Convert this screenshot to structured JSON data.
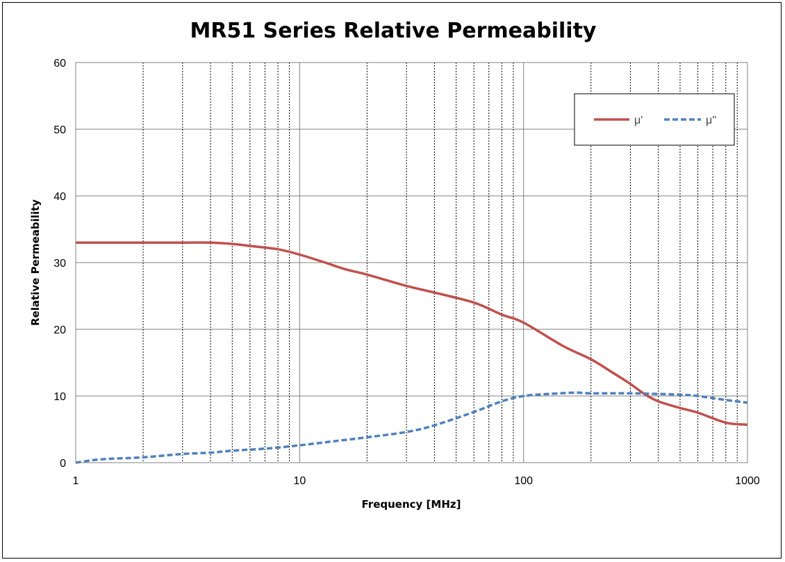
{
  "chart_data": {
    "type": "line",
    "title": "MR51 Series Relative Permeability",
    "xlabel": "Frequency [MHz]",
    "ylabel": "Relative Permeability",
    "x_scale": "log",
    "xlim": [
      1,
      1000
    ],
    "ylim": [
      0,
      60
    ],
    "x_ticks": [
      "1",
      "10",
      "100",
      "1000"
    ],
    "y_ticks": [
      "0",
      "10",
      "20",
      "30",
      "40",
      "50",
      "60"
    ],
    "grid": true,
    "legend_position": "top-right",
    "series": [
      {
        "name": "μ'",
        "color": "#C0504D",
        "line_style": "solid",
        "x": [
          1,
          2,
          3,
          4,
          5,
          6,
          8,
          10,
          13,
          16,
          20,
          30,
          40,
          60,
          80,
          100,
          150,
          200,
          250,
          300,
          350,
          400,
          500,
          600,
          800,
          1000
        ],
        "y": [
          33,
          33,
          33,
          33,
          32.8,
          32.5,
          32,
          31.2,
          30,
          29,
          28.2,
          26.5,
          25.5,
          24,
          22.2,
          21,
          17.5,
          15.5,
          13.5,
          11.8,
          10.2,
          9.2,
          8.2,
          7.5,
          6,
          5.7
        ]
      },
      {
        "name": "μ''",
        "color": "#4F81BD",
        "line_style": "dashed",
        "x": [
          1,
          1.3,
          2,
          3,
          4,
          5,
          7,
          10,
          15,
          20,
          30,
          40,
          60,
          80,
          100,
          130,
          170,
          200,
          300,
          400,
          500,
          600,
          800,
          1000
        ],
        "y": [
          0,
          0.5,
          0.8,
          1.3,
          1.5,
          1.8,
          2.1,
          2.6,
          3.3,
          3.8,
          4.6,
          5.6,
          7.6,
          9.2,
          10,
          10.3,
          10.5,
          10.4,
          10.4,
          10.3,
          10.2,
          10,
          9.4,
          9
        ]
      }
    ]
  }
}
